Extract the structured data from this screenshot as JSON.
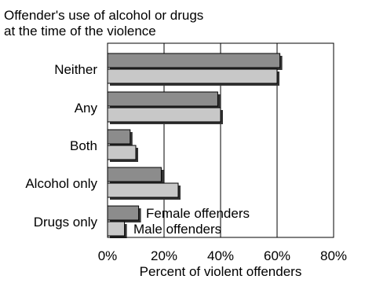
{
  "chart_data": {
    "type": "bar",
    "orientation": "horizontal",
    "title": "Offender's use of alcohol or drugs\nat the time of the violence",
    "xlabel": "Percent of violent offenders",
    "ylabel": "",
    "categories": [
      "Neither",
      "Any",
      "Both",
      "Alcohol only",
      "Drugs only"
    ],
    "series": [
      {
        "name": "Female offenders",
        "values": [
          61,
          39,
          8,
          19,
          11
        ],
        "color": "#8c8c8c"
      },
      {
        "name": "Male offenders",
        "values": [
          60,
          40,
          10,
          25,
          6
        ],
        "color": "#c8c8c8"
      }
    ],
    "xlim": [
      0,
      80
    ],
    "xticks": [
      0,
      20,
      40,
      60,
      80
    ],
    "xtick_labels": [
      "0%",
      "20%",
      "40%",
      "60%",
      "80%"
    ],
    "grid": "vertical lines",
    "legend": "bottom-right, inside plot"
  }
}
